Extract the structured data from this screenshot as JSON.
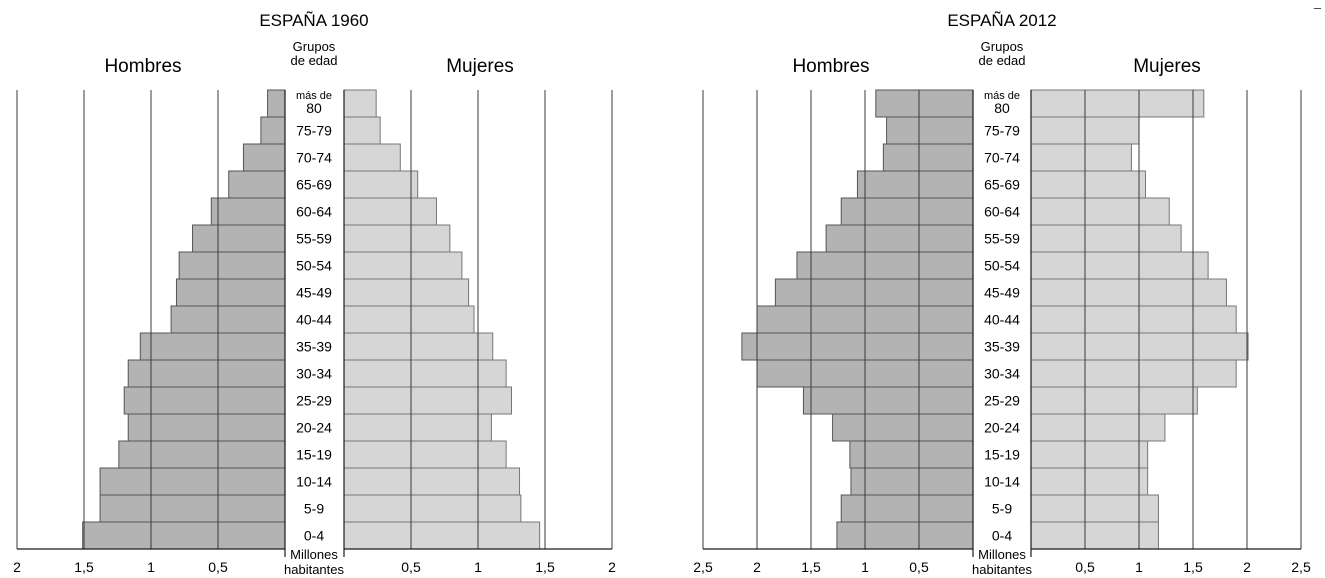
{
  "chart_data": [
    {
      "type": "bar",
      "title": "ESPAÑA 1960",
      "left_label": "Hombres",
      "right_label": "Mujeres",
      "center_header": [
        "Grupos",
        "de edad"
      ],
      "unit_label": [
        "Millones",
        "habitantes"
      ],
      "categories": [
        "más de 80",
        "75-79",
        "70-74",
        "65-69",
        "60-64",
        "55-59",
        "50-54",
        "45-49",
        "40-44",
        "35-39",
        "30-34",
        "25-29",
        "20-24",
        "15-19",
        "10-14",
        "5-9",
        "0-4"
      ],
      "category_lines": [
        [
          "más de",
          "80"
        ],
        [
          "75-79"
        ],
        [
          "70-74"
        ],
        [
          "65-69"
        ],
        [
          "60-64"
        ],
        [
          "55-59"
        ],
        [
          "50-54"
        ],
        [
          "45-49"
        ],
        [
          "40-44"
        ],
        [
          "35-39"
        ],
        [
          "30-34"
        ],
        [
          "25-29"
        ],
        [
          "20-24"
        ],
        [
          "15-19"
        ],
        [
          "10-14"
        ],
        [
          "5-9"
        ],
        [
          "0-4"
        ]
      ],
      "series": [
        {
          "name": "Hombres",
          "values": [
            0.13,
            0.18,
            0.31,
            0.42,
            0.55,
            0.69,
            0.79,
            0.81,
            0.85,
            1.08,
            1.17,
            1.2,
            1.17,
            1.24,
            1.38,
            1.38,
            1.51
          ]
        },
        {
          "name": "Mujeres",
          "values": [
            0.24,
            0.27,
            0.42,
            0.55,
            0.69,
            0.79,
            0.88,
            0.93,
            0.97,
            1.11,
            1.21,
            1.25,
            1.1,
            1.21,
            1.31,
            1.32,
            1.46
          ]
        }
      ],
      "left_ticks": [
        2,
        1.5,
        1,
        0.5
      ],
      "right_ticks": [
        0.5,
        1,
        1.5,
        2
      ],
      "tick_labels_left": [
        "2",
        "1,5",
        "1",
        "0,5"
      ],
      "tick_labels_right": [
        "0,5",
        "1",
        "1,5",
        "2"
      ],
      "xlim": [
        0,
        2
      ],
      "grid": true
    },
    {
      "type": "bar",
      "title": "ESPAÑA 2012",
      "left_label": "Hombres",
      "right_label": "Mujeres",
      "center_header": [
        "Grupos",
        "de edad"
      ],
      "unit_label": [
        "Millones",
        "habitantes"
      ],
      "categories": [
        "más de 80",
        "75-79",
        "70-74",
        "65-69",
        "60-64",
        "55-59",
        "50-54",
        "45-49",
        "40-44",
        "35-39",
        "30-34",
        "25-29",
        "20-24",
        "15-19",
        "10-14",
        "5-9",
        "0-4"
      ],
      "category_lines": [
        [
          "más de",
          "80"
        ],
        [
          "75-79"
        ],
        [
          "70-74"
        ],
        [
          "65-69"
        ],
        [
          "60-64"
        ],
        [
          "55-59"
        ],
        [
          "50-54"
        ],
        [
          "45-49"
        ],
        [
          "40-44"
        ],
        [
          "35-39"
        ],
        [
          "30-34"
        ],
        [
          "25-29"
        ],
        [
          "20-24"
        ],
        [
          "15-19"
        ],
        [
          "10-14"
        ],
        [
          "5-9"
        ],
        [
          "0-4"
        ]
      ],
      "series": [
        {
          "name": "Hombres",
          "values": [
            0.9,
            0.8,
            0.83,
            1.07,
            1.22,
            1.36,
            1.63,
            1.83,
            2.0,
            2.14,
            2.0,
            1.57,
            1.3,
            1.14,
            1.13,
            1.22,
            1.26
          ]
        },
        {
          "name": "Mujeres",
          "values": [
            1.6,
            1.0,
            0.93,
            1.06,
            1.28,
            1.39,
            1.64,
            1.81,
            1.9,
            2.01,
            1.9,
            1.54,
            1.24,
            1.08,
            1.08,
            1.18,
            1.18
          ]
        }
      ],
      "left_ticks": [
        2.5,
        2,
        1.5,
        1,
        0.5
      ],
      "right_ticks": [
        0.5,
        1,
        1.5,
        2,
        2.5
      ],
      "tick_labels_left": [
        "2,5",
        "2",
        "1,5",
        "1",
        "0,5"
      ],
      "tick_labels_right": [
        "0,5",
        "1",
        "1,5",
        "2",
        "2,5"
      ],
      "xlim": [
        0,
        2.5
      ],
      "grid": true
    }
  ],
  "corner_mark": "–"
}
